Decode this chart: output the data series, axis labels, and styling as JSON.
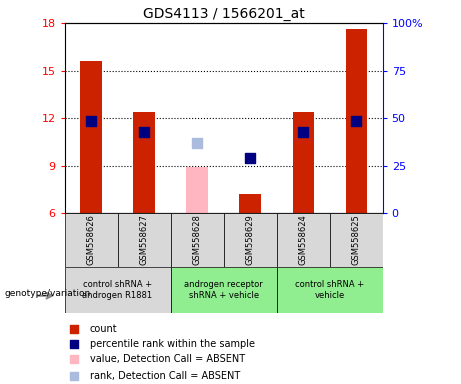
{
  "title": "GDS4113 / 1566201_at",
  "samples": [
    "GSM558626",
    "GSM558627",
    "GSM558628",
    "GSM558629",
    "GSM558624",
    "GSM558625"
  ],
  "group_defs": [
    {
      "indices": [
        0,
        1
      ],
      "label": "control shRNA +\nandrogen R1881",
      "color": "#d8d8d8"
    },
    {
      "indices": [
        2,
        3
      ],
      "label": "androgen receptor\nshRNA + vehicle",
      "color": "#90ee90"
    },
    {
      "indices": [
        4,
        5
      ],
      "label": "control shRNA +\nvehicle",
      "color": "#90ee90"
    }
  ],
  "count_values": [
    15.6,
    12.4,
    null,
    7.2,
    12.4,
    17.6
  ],
  "count_color": "#cc2200",
  "percentile_values": [
    11.8,
    11.1,
    null,
    9.5,
    11.1,
    11.8
  ],
  "percentile_color": "#000080",
  "absent_value_values": [
    null,
    null,
    8.9,
    null,
    null,
    null
  ],
  "absent_value_color": "#ffb6c1",
  "absent_rank_values": [
    null,
    null,
    10.4,
    null,
    null,
    null
  ],
  "absent_rank_color": "#aabbdd",
  "ylim": [
    6,
    18
  ],
  "yticks_left": [
    6,
    9,
    12,
    15,
    18
  ],
  "yticks_right": [
    0,
    25,
    50,
    75,
    100
  ],
  "right_ylim": [
    0,
    100
  ],
  "bar_width": 0.4,
  "marker_size": 55,
  "legend_items": [
    {
      "color": "#cc2200",
      "label": "count"
    },
    {
      "color": "#000080",
      "label": "percentile rank within the sample"
    },
    {
      "color": "#ffb6c1",
      "label": "value, Detection Call = ABSENT"
    },
    {
      "color": "#aabbdd",
      "label": "rank, Detection Call = ABSENT"
    }
  ]
}
